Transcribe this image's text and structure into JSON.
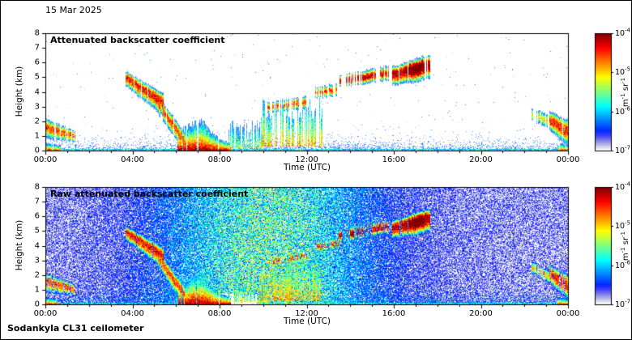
{
  "figure": {
    "date": "15 Mar 2025",
    "instrument": "Sodankyla CL31 ceilometer"
  },
  "chart_data": [
    {
      "type": "heatmap",
      "title": "Attenuated backscatter coefficient",
      "xlabel": "Time (UTC)",
      "ylabel": "Height (km)",
      "xlim_hours": [
        0,
        24
      ],
      "ylim_km": [
        0,
        8
      ],
      "xticks": [
        "00:00",
        "04:00",
        "08:00",
        "12:00",
        "16:00",
        "20:00",
        "00:00"
      ],
      "xtick_hours": [
        0,
        4,
        8,
        12,
        16,
        20,
        24
      ],
      "yticks": [
        0,
        1,
        2,
        3,
        4,
        5,
        6,
        7,
        8
      ],
      "grid": false,
      "background": "#ffffff",
      "colormap": "jet",
      "under_color": "#ffffff",
      "colorbar": {
        "scale": "log10",
        "range": [
          1e-07,
          0.0001
        ],
        "ticks": [
          {
            "mantissa": "10",
            "exp": "-4"
          },
          {
            "mantissa": "10",
            "exp": "-5"
          },
          {
            "mantissa": "10",
            "exp": "-6"
          },
          {
            "mantissa": "10",
            "exp": "-7"
          }
        ],
        "unit": "m^-1 sr^-1",
        "unit_parts": [
          {
            "text": "m"
          },
          {
            "sup": "-1"
          },
          {
            "text": " sr"
          },
          {
            "sup": "-1"
          }
        ]
      },
      "noise": {
        "bg": false,
        "white_frac": 0,
        "boundary": {
          "density": 0.85,
          "scale_km": 0.3,
          "v_base": -6.95,
          "v_spread": 0.85
        },
        "speck_prob": 0.003,
        "fade": 0.8
      },
      "features": [
        {
          "kind": "surface",
          "t0": 0.0,
          "t1": 0.7,
          "h0": 0.5,
          "h1": 0.35,
          "peak": -4.4,
          "density": 0.95,
          "note": "strong surface echo just after midnight"
        },
        {
          "kind": "cloud",
          "t0": 0.0,
          "t1": 1.35,
          "h0": 1.6,
          "h1": 1.0,
          "w0": 0.55,
          "w1": 0.3,
          "peak": -4.7,
          "density": 0.8,
          "tail": 1.4,
          "note": "low layer 0-2.5 km, 00:00-01:20"
        },
        {
          "kind": "cloud",
          "t0": 3.7,
          "t1": 5.4,
          "h0": 5.0,
          "h1": 3.3,
          "w0": 0.35,
          "w1": 0.55,
          "peak": -4.5,
          "density": 0.92,
          "tail": 1.6,
          "note": "cloud base descending 5.0 to 3.3 km, 03:45-05:25"
        },
        {
          "kind": "cloud",
          "t0": 5.2,
          "t1": 6.4,
          "h0": 3.1,
          "h1": 0.7,
          "w0": 0.5,
          "w1": 0.55,
          "peak": -4.7,
          "density": 0.88,
          "tail": 1.3,
          "note": "layer descends to surface by ~06:20"
        },
        {
          "kind": "surface",
          "t0": 6.1,
          "t1": 8.5,
          "h0": 1.3,
          "h1": 0.5,
          "peak": -4.2,
          "density": 0.95,
          "bump": {
            "t": 7.1,
            "amp": 1.0,
            "width": 0.45
          },
          "note": "fog/precip at surface 06:10-08:30, top ~2.2 km near 07:00"
        },
        {
          "kind": "streaks",
          "t0": 8.4,
          "t1": 10.3,
          "h0": 0.15,
          "h1": 1.1,
          "htop_var": 1.0,
          "peak": -5.4,
          "density": 0.55,
          "note": "shallow patchy returns 08:30-10:15"
        },
        {
          "kind": "streaks",
          "t0": 9.9,
          "t1": 12.7,
          "h0": 0.3,
          "h1": 2.0,
          "htop_var": 1.6,
          "peak": -5.0,
          "density": 0.5,
          "note": "broken vertical streaks up to ~3.5 km, 10:00-12:40"
        },
        {
          "kind": "cloud",
          "t0": 10.2,
          "t1": 12.0,
          "h0": 2.9,
          "h1": 3.3,
          "w0": 0.35,
          "w1": 0.4,
          "peak": -4.7,
          "density": 0.45,
          "note": "patchy cloud ~3 km"
        },
        {
          "kind": "cloud",
          "t0": 12.4,
          "t1": 13.5,
          "h0": 3.9,
          "h1": 4.2,
          "w0": 0.35,
          "w1": 0.4,
          "peak": -4.7,
          "density": 0.5,
          "note": "broken cloud ~4 km, 12:25-13:30"
        },
        {
          "kind": "cloud",
          "t0": 13.5,
          "t1": 15.75,
          "h0": 4.7,
          "h1": 5.3,
          "w0": 0.35,
          "w1": 0.45,
          "peak": -4.4,
          "density": 0.5,
          "peak_bump": {
            "t": 14.1,
            "amp": 0.35,
            "width": 0.3
          },
          "note": "broken cloud 4.5-5.5 km, 13:30-15:45"
        },
        {
          "kind": "cloud",
          "t0": 15.95,
          "t1": 17.65,
          "h0": 5.2,
          "h1": 5.9,
          "w0": 0.45,
          "w1": 0.55,
          "peak": -4.25,
          "density": 0.93,
          "tail": 1.5,
          "peak_bump": {
            "t": 17.05,
            "amp": 0.55,
            "width": 0.3
          },
          "note": "cloud layer rising 5.2 to 5.9 km, strongest (dark red) near 17:00"
        },
        {
          "kind": "cloud",
          "t0": 22.35,
          "t1": 23.15,
          "h0": 2.5,
          "h1": 1.9,
          "w0": 0.45,
          "w1": 0.5,
          "peak": -5.2,
          "density": 0.55,
          "note": "weak broken layer 2-2.8 km, 22:20-23:10"
        },
        {
          "kind": "cloud",
          "t0": 23.15,
          "t1": 24.0,
          "h0": 2.1,
          "h1": 1.3,
          "w0": 0.55,
          "w1": 0.75,
          "peak": -4.55,
          "density": 0.85,
          "tail": 1.2,
          "note": "stronger layer 1-2.5 km at end of day"
        },
        {
          "kind": "surface",
          "t0": 23.55,
          "t1": 24.0,
          "h0": 0.45,
          "h1": 0.45,
          "peak": -4.5,
          "density": 0.9,
          "note": "surface echo just before midnight"
        }
      ]
    },
    {
      "type": "heatmap",
      "title": "Raw attenuated backscatter coefficient",
      "xlabel": "Time (UTC)",
      "ylabel": "Height (km)",
      "xlim_hours": [
        0,
        24
      ],
      "ylim_km": [
        0,
        8
      ],
      "xticks": [
        "00:00",
        "04:00",
        "08:00",
        "12:00",
        "16:00",
        "20:00",
        "00:00"
      ],
      "xtick_hours": [
        0,
        4,
        8,
        12,
        16,
        20,
        24
      ],
      "yticks": [
        0,
        1,
        2,
        3,
        4,
        5,
        6,
        7,
        8
      ],
      "grid": false,
      "background": "#ffffff",
      "colormap": "jet",
      "under_color": "#ffffff",
      "colorbar": {
        "scale": "log10",
        "range": [
          1e-07,
          0.0001
        ],
        "ticks": [
          {
            "mantissa": "10",
            "exp": "-4"
          },
          {
            "mantissa": "10",
            "exp": "-5"
          },
          {
            "mantissa": "10",
            "exp": "-6"
          },
          {
            "mantissa": "10",
            "exp": "-7"
          }
        ],
        "unit": "m^-1 sr^-1",
        "unit_parts": [
          {
            "text": "m"
          },
          {
            "sup": "-1"
          },
          {
            "text": " sr"
          },
          {
            "sup": "-1"
          }
        ]
      },
      "noise": {
        "bg": true,
        "white_frac": 0.15,
        "day_amp": 1.9,
        "day_center": 10.2,
        "day_sigma": 3.3,
        "boundary": {
          "density": 0.9,
          "scale_km": 0.32,
          "v_base": -6.8,
          "v_spread": 0.9
        },
        "speck_prob": 0,
        "fade": 0.45,
        "note": "full-field blue receiver noise, enhanced (green/yellow) by daylight roughly 05:00-15:30"
      },
      "gaps": [
        {
          "t0": 7.9,
          "t1": 9.7,
          "h0": 0,
          "h1": 0.7,
          "note": "white attenuated region below cloud 08:00-09:40"
        }
      ],
      "features": "same atmospheric features as chart_data[0] (clean panel)"
    }
  ]
}
